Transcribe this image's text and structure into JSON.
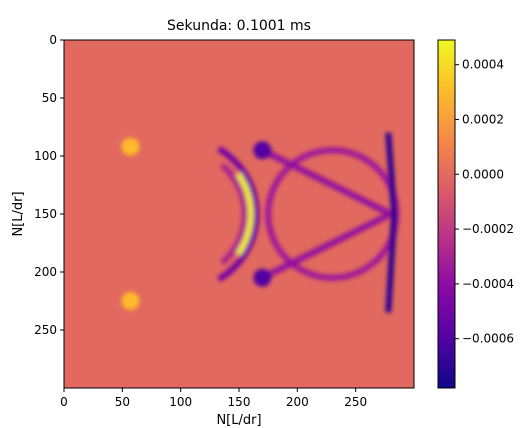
{
  "chart_data": {
    "type": "heatmap",
    "title": "Sekunda: 0.1001 ms",
    "xlabel": "N[L/dr]",
    "ylabel": "N[L/dr]",
    "xlim": [
      0,
      300
    ],
    "ylim": [
      300,
      0
    ],
    "x_ticks": [
      0,
      50,
      100,
      150,
      200,
      250
    ],
    "y_ticks": [
      0,
      50,
      100,
      150,
      200,
      250
    ],
    "colormap": "plasma",
    "background_value": 0.0,
    "colorbar": {
      "range": [
        -0.00078,
        0.00049
      ],
      "ticks": [
        "0.0004",
        "0.0002",
        "0.0000",
        "−0.0002",
        "−0.0004",
        "−0.0006"
      ],
      "tick_values": [
        0.0004,
        0.0002,
        0.0,
        -0.0002,
        -0.0004,
        -0.0006
      ]
    },
    "features": [
      {
        "kind": "arc",
        "cx": 100,
        "cy": 150,
        "r": 65,
        "from_deg": -60,
        "to_deg": 60,
        "value": -0.0005
      },
      {
        "kind": "arc",
        "cx": 100,
        "cy": 150,
        "r": 60,
        "from_deg": -35,
        "to_deg": 35,
        "value": 0.00045
      },
      {
        "kind": "arc",
        "cx": 100,
        "cy": 150,
        "r": 55,
        "from_deg": -50,
        "to_deg": 50,
        "value": -0.0003
      },
      {
        "kind": "arc",
        "cx": 230,
        "cy": 150,
        "r": 55,
        "from_deg": -180,
        "to_deg": 180,
        "value": -0.00035
      },
      {
        "kind": "line",
        "points": [
          [
            170,
            95
          ],
          [
            280,
            150
          ]
        ],
        "value": -0.0004
      },
      {
        "kind": "line",
        "points": [
          [
            170,
            205
          ],
          [
            280,
            150
          ]
        ],
        "value": -0.0004
      },
      {
        "kind": "line",
        "points": [
          [
            278,
            80
          ],
          [
            283,
            150
          ],
          [
            278,
            235
          ]
        ],
        "value": -0.0007
      },
      {
        "kind": "blob",
        "x": 57,
        "y": 92,
        "value": 0.0003
      },
      {
        "kind": "blob",
        "x": 57,
        "y": 225,
        "value": 0.0003
      },
      {
        "kind": "blob",
        "x": 170,
        "y": 95,
        "value": -0.0006
      },
      {
        "kind": "blob",
        "x": 170,
        "y": 205,
        "value": -0.0006
      }
    ]
  }
}
